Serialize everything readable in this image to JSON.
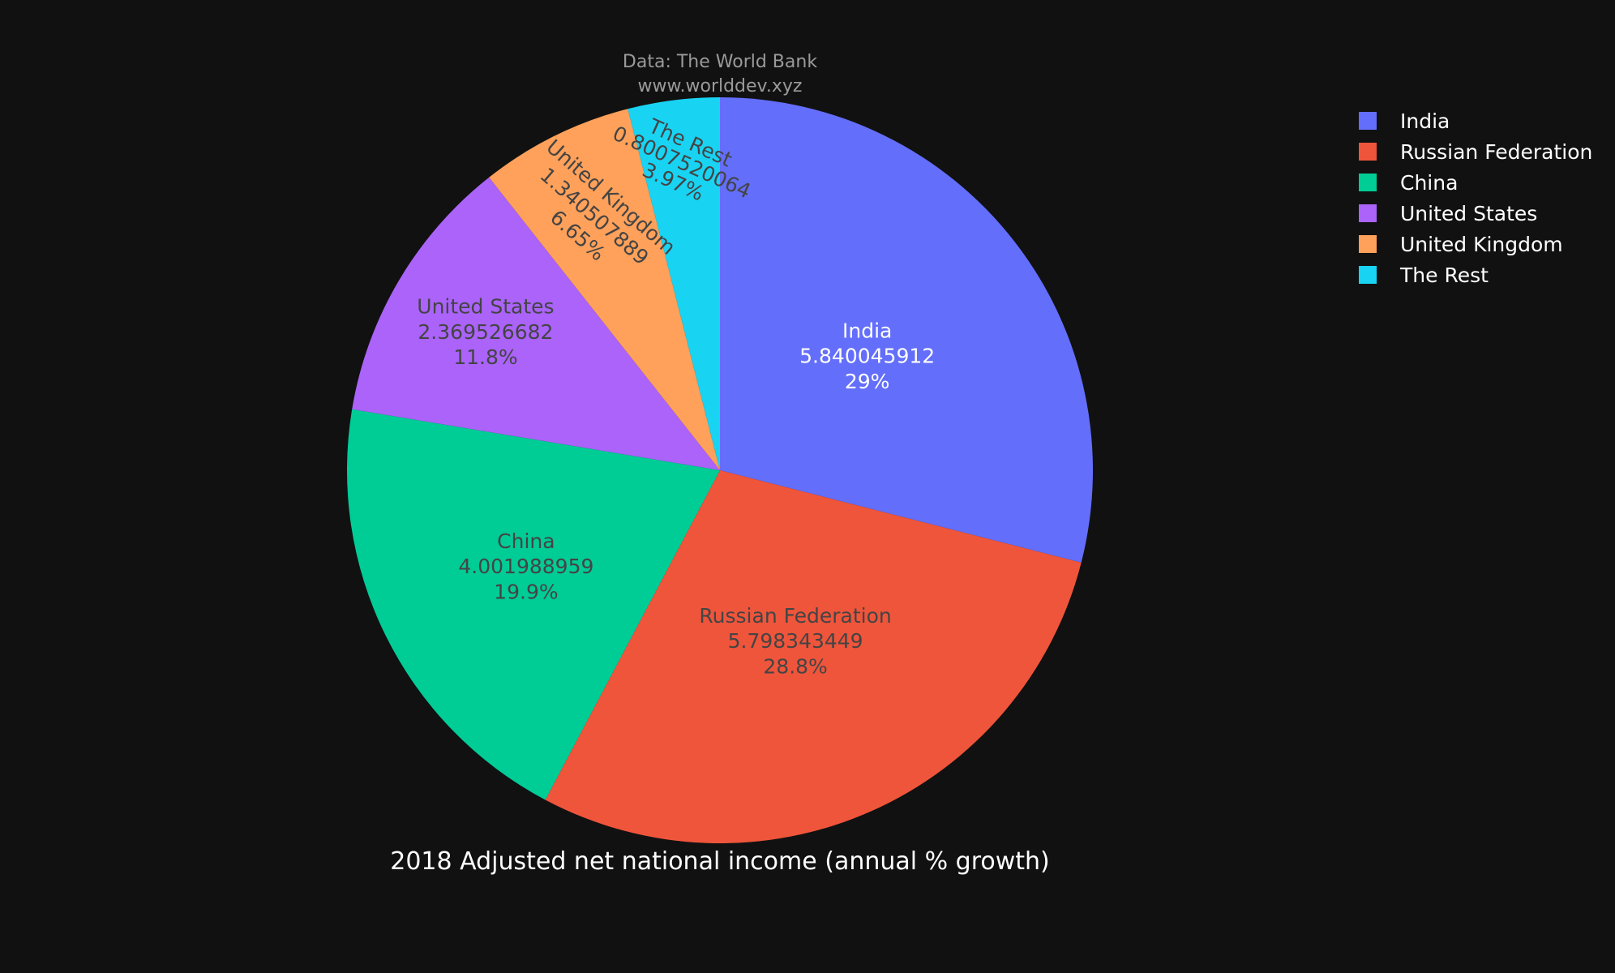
{
  "chart_data": {
    "type": "pie",
    "title": "2018 Adjusted net national income (annual % growth)",
    "source_lines": [
      "Data: The World Bank",
      "www.worlddev.xyz"
    ],
    "legend_position": "top-right",
    "slices": [
      {
        "label": "India",
        "value": 5.840045912,
        "percent_text": "29%",
        "value_text": "5.840045912",
        "color": "#636efa",
        "text_color": "#ffffff"
      },
      {
        "label": "Russian Federation",
        "value": 5.798343449,
        "percent_text": "28.8%",
        "value_text": "5.798343449",
        "color": "#ef553b",
        "text_color": "#444444"
      },
      {
        "label": "China",
        "value": 4.001988959,
        "percent_text": "19.9%",
        "value_text": "4.001988959",
        "color": "#00cc96",
        "text_color": "#444444"
      },
      {
        "label": "United States",
        "value": 2.369526682,
        "percent_text": "11.8%",
        "value_text": "2.369526682",
        "color": "#ab63fa",
        "text_color": "#444444"
      },
      {
        "label": "United Kingdom",
        "value": 1.340507889,
        "percent_text": "6.65%",
        "value_text": "1.340507889",
        "color": "#ffa15a",
        "text_color": "#444444"
      },
      {
        "label": "The Rest",
        "value": 0.8007520064,
        "percent_text": "3.97%",
        "value_text": "0.8007520064",
        "color": "#19d3f3",
        "text_color": "#444444"
      }
    ]
  }
}
